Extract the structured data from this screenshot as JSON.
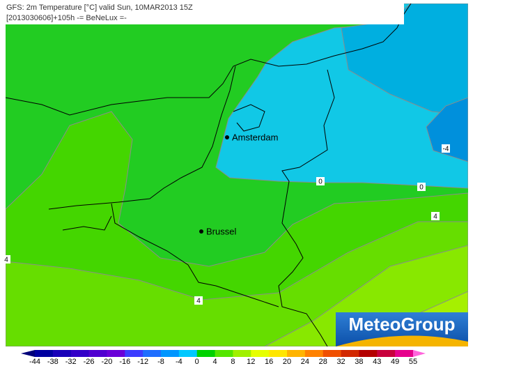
{
  "header": {
    "line1": "GFS: 2m Temperature [°C] valid Sun, 10MAR2013 15Z",
    "line2": "[2013030606]+105h -= BeNeLux =-"
  },
  "cities": [
    {
      "label": "Amsterdam"
    },
    {
      "label": "Brussel"
    }
  ],
  "contour_labels": [
    -4,
    0,
    0,
    4,
    4,
    4
  ],
  "logo": "MeteoGroup",
  "colorbar": {
    "labels": [
      -44,
      -38,
      -32,
      -26,
      -20,
      -16,
      -12,
      -8,
      -4,
      0,
      4,
      8,
      12,
      16,
      20,
      24,
      28,
      32,
      38,
      43,
      49,
      55
    ],
    "colors": [
      "#00007a",
      "#0000a0",
      "#1800b8",
      "#3300c8",
      "#5000d0",
      "#6a00d8",
      "#3c3cff",
      "#1e6eff",
      "#0096ff",
      "#00c8ff",
      "#00d200",
      "#55e600",
      "#a0f000",
      "#e6ff00",
      "#ffe600",
      "#ffb400",
      "#ff8200",
      "#f05000",
      "#d22800",
      "#b40000",
      "#c8003c",
      "#e6008c",
      "#ff64dc"
    ]
  }
}
